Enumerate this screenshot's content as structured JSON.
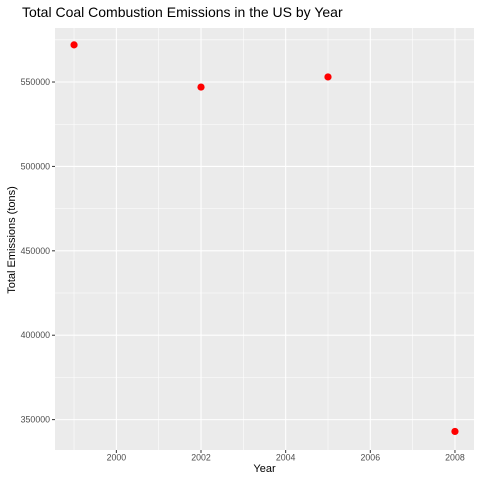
{
  "chart_data": {
    "type": "scatter",
    "title": "Total Coal Combustion Emissions in the US by Year",
    "xlabel": "Year",
    "ylabel": "Total Emissions (tons)",
    "x": [
      1999,
      2002,
      2005,
      2008
    ],
    "y": [
      572000,
      547000,
      553000,
      343000
    ],
    "xlim": [
      1998.55,
      2008.45
    ],
    "ylim": [
      332000,
      582000
    ],
    "x_ticks": [
      2000,
      2002,
      2004,
      2006,
      2008
    ],
    "x_tick_labels": [
      "2000",
      "2002",
      "2004",
      "2006",
      "2008"
    ],
    "y_ticks": [
      350000,
      400000,
      450000,
      500000,
      550000
    ],
    "y_tick_labels": [
      "350000",
      "400000",
      "450000",
      "500000",
      "550000"
    ],
    "grid": true,
    "legend": "none",
    "colors": {
      "panel_background": "#ebebeb",
      "grid": "#ffffff",
      "point": "#ff0000"
    }
  }
}
